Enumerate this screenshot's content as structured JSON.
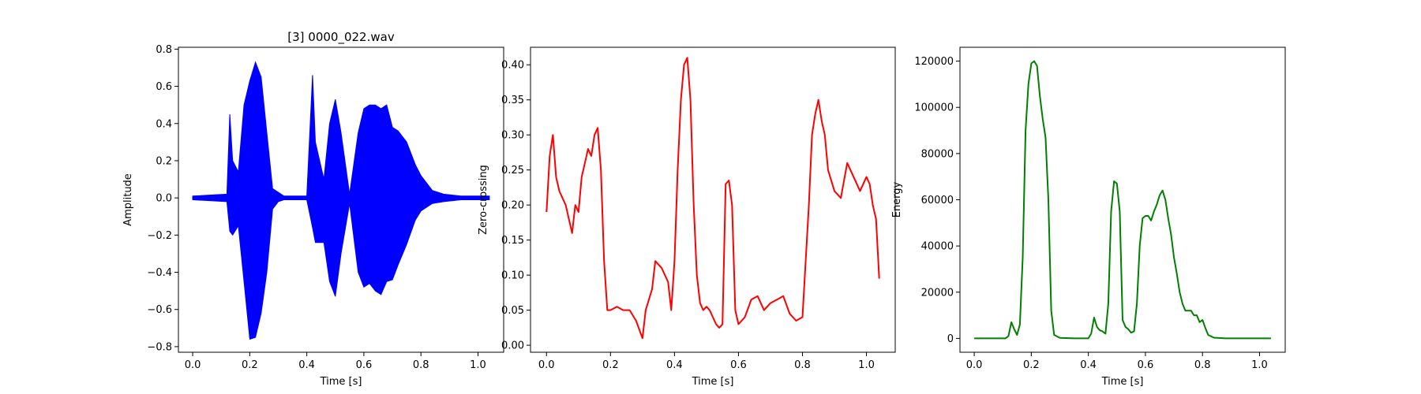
{
  "figure": {
    "background": "#ffffff"
  },
  "chart_data": [
    {
      "type": "line",
      "title": "[3] 0000_022.wav",
      "xlabel": "Time [s]",
      "ylabel": "Amplitude",
      "xlim": [
        -0.05,
        1.09
      ],
      "ylim": [
        -0.83,
        0.81
      ],
      "xticks": [
        "0.0",
        "0.2",
        "0.4",
        "0.6",
        "0.8",
        "1.0"
      ],
      "yticks": [
        "−0.8",
        "−0.6",
        "−0.4",
        "−0.2",
        "0.0",
        "0.2",
        "0.4",
        "0.6",
        "0.8"
      ],
      "style": "waveform",
      "color": "#0000ff",
      "grid": false,
      "series": [
        {
          "x": [
            0.0,
            0.12,
            0.13,
            0.14,
            0.16,
            0.18,
            0.2,
            0.22,
            0.24,
            0.26,
            0.28,
            0.3,
            0.32,
            0.36,
            0.4,
            0.42,
            0.43,
            0.46,
            0.48,
            0.5,
            0.52,
            0.55,
            0.58,
            0.6,
            0.62,
            0.64,
            0.66,
            0.68,
            0.7,
            0.72,
            0.75,
            0.78,
            0.8,
            0.84,
            0.88,
            0.94,
            1.0,
            1.04
          ],
          "upper": [
            0.01,
            0.02,
            0.45,
            0.2,
            0.14,
            0.5,
            0.63,
            0.73,
            0.65,
            0.35,
            0.05,
            0.03,
            0.01,
            0.01,
            0.01,
            0.66,
            0.3,
            0.1,
            0.4,
            0.53,
            0.35,
            0.02,
            0.35,
            0.48,
            0.5,
            0.5,
            0.48,
            0.5,
            0.38,
            0.36,
            0.3,
            0.18,
            0.12,
            0.04,
            0.02,
            0.01,
            0.01,
            0.01
          ],
          "lower": [
            -0.01,
            -0.02,
            -0.18,
            -0.2,
            -0.15,
            -0.45,
            -0.76,
            -0.75,
            -0.62,
            -0.4,
            -0.06,
            -0.02,
            -0.01,
            -0.01,
            -0.01,
            -0.16,
            -0.24,
            -0.24,
            -0.45,
            -0.53,
            -0.3,
            -0.03,
            -0.4,
            -0.48,
            -0.46,
            -0.5,
            -0.52,
            -0.45,
            -0.44,
            -0.36,
            -0.25,
            -0.12,
            -0.07,
            -0.03,
            -0.02,
            -0.01,
            -0.01,
            -0.01
          ]
        }
      ]
    },
    {
      "type": "line",
      "title": "",
      "xlabel": "Time [s]",
      "ylabel": "Zero-crossing",
      "xlim": [
        -0.05,
        1.09
      ],
      "ylim": [
        -0.01,
        0.425
      ],
      "xticks": [
        "0.0",
        "0.2",
        "0.4",
        "0.6",
        "0.8",
        "1.0"
      ],
      "yticks": [
        "0.00",
        "0.05",
        "0.10",
        "0.15",
        "0.20",
        "0.25",
        "0.30",
        "0.35",
        "0.40"
      ],
      "color": "#ff0000",
      "grid": false,
      "series": [
        {
          "x": [
            0.0,
            0.01,
            0.02,
            0.03,
            0.04,
            0.05,
            0.06,
            0.07,
            0.08,
            0.09,
            0.1,
            0.11,
            0.12,
            0.13,
            0.14,
            0.15,
            0.16,
            0.17,
            0.18,
            0.19,
            0.2,
            0.22,
            0.24,
            0.26,
            0.28,
            0.3,
            0.31,
            0.33,
            0.34,
            0.36,
            0.38,
            0.39,
            0.4,
            0.41,
            0.42,
            0.43,
            0.44,
            0.45,
            0.46,
            0.47,
            0.48,
            0.49,
            0.5,
            0.51,
            0.52,
            0.53,
            0.54,
            0.55,
            0.56,
            0.57,
            0.58,
            0.59,
            0.6,
            0.62,
            0.64,
            0.66,
            0.68,
            0.7,
            0.72,
            0.74,
            0.76,
            0.78,
            0.8,
            0.82,
            0.83,
            0.84,
            0.85,
            0.86,
            0.87,
            0.88,
            0.9,
            0.92,
            0.94,
            0.96,
            0.98,
            1.0,
            1.01,
            1.02,
            1.03,
            1.04
          ],
          "y": [
            0.19,
            0.27,
            0.3,
            0.24,
            0.22,
            0.21,
            0.2,
            0.18,
            0.16,
            0.2,
            0.19,
            0.24,
            0.26,
            0.28,
            0.27,
            0.3,
            0.31,
            0.25,
            0.12,
            0.05,
            0.05,
            0.055,
            0.05,
            0.05,
            0.035,
            0.01,
            0.05,
            0.08,
            0.12,
            0.11,
            0.09,
            0.05,
            0.12,
            0.25,
            0.35,
            0.4,
            0.41,
            0.35,
            0.2,
            0.1,
            0.06,
            0.05,
            0.055,
            0.05,
            0.04,
            0.03,
            0.025,
            0.03,
            0.23,
            0.235,
            0.2,
            0.05,
            0.03,
            0.04,
            0.065,
            0.07,
            0.05,
            0.06,
            0.065,
            0.07,
            0.045,
            0.035,
            0.04,
            0.2,
            0.3,
            0.33,
            0.35,
            0.32,
            0.3,
            0.25,
            0.22,
            0.21,
            0.26,
            0.24,
            0.22,
            0.24,
            0.23,
            0.2,
            0.18,
            0.095
          ]
        }
      ]
    },
    {
      "type": "line",
      "title": "",
      "xlabel": "Time [s]",
      "ylabel": "Energy",
      "xlim": [
        -0.05,
        1.09
      ],
      "ylim": [
        -6000,
        126000
      ],
      "xticks": [
        "0.0",
        "0.2",
        "0.4",
        "0.6",
        "0.8",
        "1.0"
      ],
      "yticks": [
        "0",
        "20000",
        "40000",
        "60000",
        "80000",
        "100000",
        "120000"
      ],
      "color": "#008000",
      "grid": false,
      "series": [
        {
          "x": [
            0.0,
            0.11,
            0.12,
            0.13,
            0.14,
            0.15,
            0.16,
            0.17,
            0.18,
            0.19,
            0.2,
            0.21,
            0.22,
            0.23,
            0.24,
            0.25,
            0.26,
            0.27,
            0.28,
            0.3,
            0.35,
            0.4,
            0.41,
            0.42,
            0.43,
            0.44,
            0.45,
            0.46,
            0.47,
            0.48,
            0.49,
            0.5,
            0.51,
            0.52,
            0.53,
            0.54,
            0.55,
            0.56,
            0.57,
            0.58,
            0.59,
            0.6,
            0.61,
            0.62,
            0.63,
            0.64,
            0.65,
            0.66,
            0.67,
            0.68,
            0.69,
            0.7,
            0.71,
            0.72,
            0.73,
            0.74,
            0.75,
            0.76,
            0.77,
            0.78,
            0.79,
            0.8,
            0.81,
            0.82,
            0.84,
            0.88,
            1.04
          ],
          "y": [
            0,
            0,
            1000,
            7000,
            4000,
            1500,
            6000,
            35000,
            90000,
            110000,
            119000,
            120000,
            118000,
            105000,
            95000,
            87000,
            60000,
            12000,
            1500,
            200,
            0,
            0,
            2000,
            9000,
            5000,
            3500,
            3000,
            2000,
            15000,
            55000,
            68000,
            67000,
            55000,
            8000,
            5000,
            4000,
            2500,
            3000,
            15000,
            40000,
            52000,
            53000,
            53000,
            51000,
            55000,
            58000,
            62000,
            64000,
            60000,
            52000,
            45000,
            35000,
            28000,
            20000,
            15000,
            12000,
            12000,
            12000,
            10000,
            10000,
            7000,
            8000,
            4500,
            1500,
            300,
            0,
            0
          ]
        }
      ]
    }
  ]
}
